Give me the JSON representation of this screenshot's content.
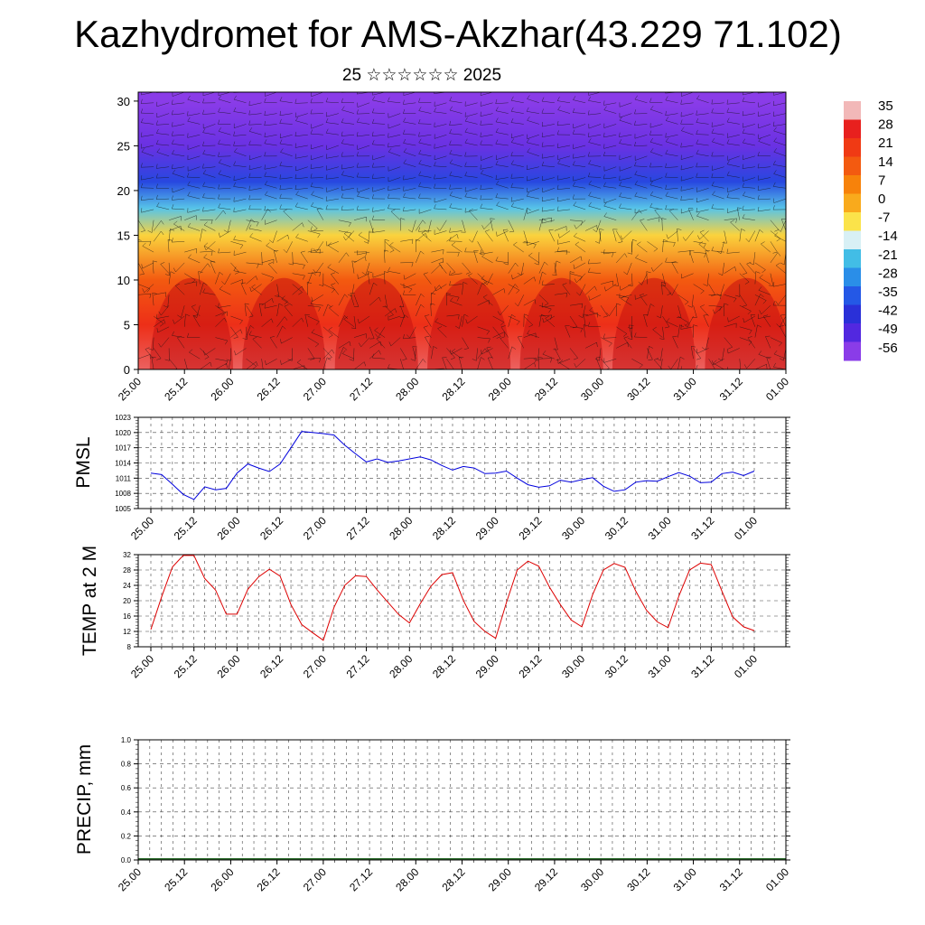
{
  "title": "Kazhydromet for AMS-Akzhar(43.229 71.102)",
  "subtitle": "25 ☆☆☆☆☆☆ 2025",
  "x_tick_labels": [
    "25.00",
    "25.12",
    "26.00",
    "26.12",
    "27.00",
    "27.12",
    "28.00",
    "28.12",
    "29.00",
    "29.12",
    "30.00",
    "30.12",
    "31.00",
    "31.12",
    "01.00"
  ],
  "chart_data": [
    {
      "type": "heatmap",
      "title": "",
      "xlabel": "",
      "ylabel": "",
      "x": [
        "25.00",
        "25.12",
        "26.00",
        "26.12",
        "27.00",
        "27.12",
        "28.00",
        "28.12",
        "29.00",
        "29.12",
        "30.00",
        "30.12",
        "31.00",
        "31.12",
        "01.00"
      ],
      "y_ticks": [
        0,
        5,
        10,
        15,
        20,
        25,
        30
      ],
      "ylim": [
        0,
        31
      ],
      "overlay": "wind barbs",
      "colorbar": {
        "labels": [
          "35",
          "28",
          "21",
          "14",
          "7",
          "0",
          "-7",
          "-14",
          "-21",
          "-28",
          "-35",
          "-42",
          "-49",
          "-56"
        ],
        "colors": [
          "#f2b8b8",
          "#e8201e",
          "#f03a14",
          "#f35a10",
          "#f7820a",
          "#f9aa1c",
          "#fbe34a",
          "#d8f0f5",
          "#42bde6",
          "#2a8ee8",
          "#2458e6",
          "#2a30d8",
          "#5228e0",
          "#8a3ce8"
        ]
      },
      "temperature_profile": [
        {
          "height": 0,
          "value": 31
        },
        {
          "height": 5,
          "value": 24
        },
        {
          "height": 10,
          "value": 14
        },
        {
          "height": 15,
          "value": -5
        },
        {
          "height": 18,
          "value": -20
        },
        {
          "height": 21,
          "value": -38
        },
        {
          "height": 25,
          "value": -52
        },
        {
          "height": 30,
          "value": -60
        }
      ]
    },
    {
      "type": "line",
      "ylabel": "PMSL",
      "ylim": [
        1005,
        1023
      ],
      "y_ticks": [
        1005,
        1008,
        1011,
        1014,
        1017,
        1020,
        1023
      ],
      "series": [
        {
          "color": "#0000dd",
          "values": [
            1012,
            1011.7,
            1009.8,
            1007.8,
            1006.8,
            1009.3,
            1008.7,
            1009,
            1012,
            1013.8,
            1013,
            1012.3,
            1013.8,
            1017,
            1020.2,
            1020,
            1019.8,
            1019.5,
            1017.5,
            1015.8,
            1014.2,
            1014.8,
            1014.1,
            1014.4,
            1014.8,
            1015.2,
            1014.6,
            1013.5,
            1012.6,
            1013.3,
            1013,
            1011.9,
            1012,
            1012.4,
            1011,
            1009.7,
            1009.2,
            1009.5,
            1010.6,
            1010.2,
            1010.7,
            1011.1,
            1009.4,
            1008.4,
            1008.7,
            1010.2,
            1010.5,
            1010.4,
            1011.3,
            1012.1,
            1011.4,
            1010.1,
            1010.2,
            1011.9,
            1012.2,
            1011.5,
            1012.4
          ]
        }
      ]
    },
    {
      "type": "line",
      "ylabel": "TEMP at 2 M",
      "ylim": [
        8,
        32
      ],
      "y_ticks": [
        8,
        12,
        16,
        20,
        24,
        28,
        32
      ],
      "series": [
        {
          "color": "#dd0000",
          "values": [
            12.5,
            21,
            28.8,
            31.8,
            31.8,
            25.8,
            22.8,
            16.5,
            16.5,
            23,
            26.2,
            28.2,
            26.4,
            19,
            13.8,
            11.7,
            9.7,
            18.3,
            24,
            26.5,
            26.3,
            22.8,
            19.6,
            16.4,
            14.2,
            19.2,
            23.8,
            26.8,
            27.3,
            20.1,
            14.6,
            12,
            10.2,
            19.5,
            28,
            30.3,
            29,
            23.5,
            19,
            15,
            13.2,
            21.6,
            28,
            29.7,
            28.7,
            22.5,
            17.5,
            14.5,
            13,
            21.2,
            28,
            29.8,
            29.4,
            22.5,
            15.8,
            13.2,
            12.2
          ]
        }
      ]
    },
    {
      "type": "bar",
      "ylabel": "PRECIP, mm",
      "ylim": [
        0,
        1
      ],
      "y_ticks": [
        "0.0",
        "0.2",
        "0.4",
        "0.6",
        "0.8",
        "1.0"
      ],
      "values": []
    }
  ]
}
